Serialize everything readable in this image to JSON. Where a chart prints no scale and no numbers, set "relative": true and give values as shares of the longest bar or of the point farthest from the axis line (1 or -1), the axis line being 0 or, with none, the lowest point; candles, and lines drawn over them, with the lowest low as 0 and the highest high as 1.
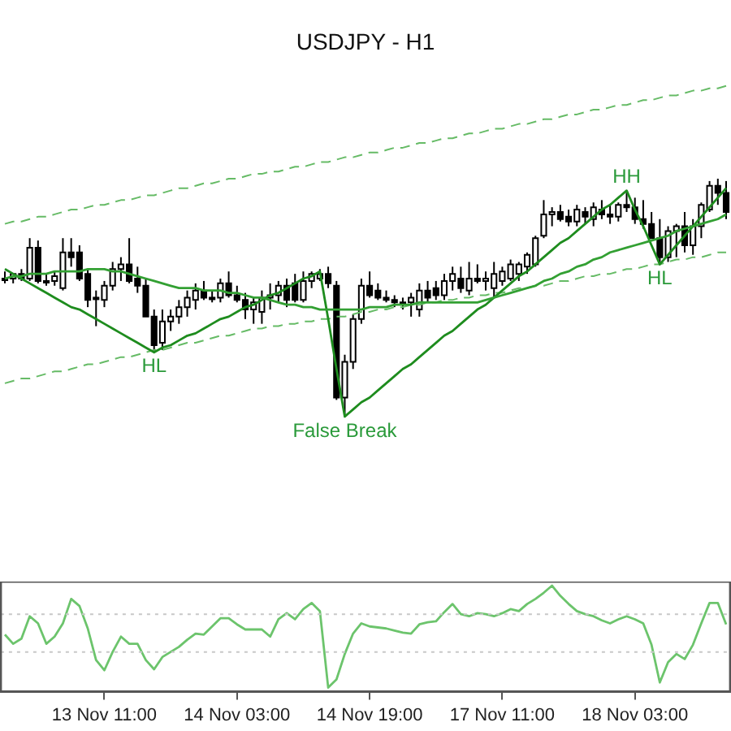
{
  "chart_data": [
    {
      "type": "candlestick",
      "title": "USDJPY - H1",
      "relative": true,
      "legend": false,
      "grid": false,
      "categories": [
        null,
        null,
        null,
        null,
        null,
        null,
        null,
        null,
        null,
        null,
        null,
        null,
        null,
        null,
        null,
        null,
        null,
        null,
        null,
        null,
        null,
        null,
        null,
        null,
        null,
        null,
        null,
        null,
        null,
        null,
        null,
        null,
        null,
        null,
        null,
        null,
        null,
        null,
        null,
        null,
        null,
        null,
        null,
        null,
        null,
        null,
        null,
        null,
        null,
        null,
        null,
        null,
        null,
        null,
        null,
        null,
        null,
        null,
        null,
        null,
        null,
        null,
        null,
        null,
        null,
        null,
        null,
        null,
        null,
        null,
        null,
        null,
        null,
        null,
        null,
        null,
        null,
        null,
        null,
        null,
        null,
        null,
        null,
        null,
        null,
        null,
        null,
        null
      ],
      "ohlc": [
        [
          0.58,
          0.61,
          0.56,
          0.58
        ],
        [
          0.58,
          0.6,
          0.56,
          0.6
        ],
        [
          0.6,
          0.62,
          0.57,
          0.58
        ],
        [
          0.58,
          0.75,
          0.57,
          0.71
        ],
        [
          0.71,
          0.74,
          0.56,
          0.57
        ],
        [
          0.57,
          0.6,
          0.55,
          0.57
        ],
        [
          0.57,
          0.61,
          0.55,
          0.59
        ],
        [
          0.54,
          0.75,
          0.53,
          0.69
        ],
        [
          0.69,
          0.75,
          0.63,
          0.67
        ],
        [
          0.69,
          0.72,
          0.57,
          0.58
        ],
        [
          0.6,
          0.62,
          0.46,
          0.49
        ],
        [
          0.5,
          0.53,
          0.38,
          0.5
        ],
        [
          0.49,
          0.57,
          0.46,
          0.55
        ],
        [
          0.55,
          0.65,
          0.53,
          0.62
        ],
        [
          0.62,
          0.67,
          0.57,
          0.64
        ],
        [
          0.64,
          0.75,
          0.56,
          0.57
        ],
        [
          0.58,
          0.63,
          0.52,
          0.55
        ],
        [
          0.55,
          0.58,
          0.42,
          0.42
        ],
        [
          0.42,
          0.45,
          0.27,
          0.3
        ],
        [
          0.31,
          0.45,
          0.28,
          0.4
        ],
        [
          0.4,
          0.45,
          0.36,
          0.42
        ],
        [
          0.42,
          0.49,
          0.39,
          0.46
        ],
        [
          0.46,
          0.53,
          0.42,
          0.5
        ],
        [
          0.49,
          0.56,
          0.45,
          0.53
        ],
        [
          0.53,
          0.57,
          0.49,
          0.5
        ],
        [
          0.5,
          0.53,
          0.48,
          0.5
        ],
        [
          0.5,
          0.58,
          0.48,
          0.56
        ],
        [
          0.56,
          0.61,
          0.5,
          0.51
        ],
        [
          0.51,
          0.55,
          0.48,
          0.49
        ],
        [
          0.49,
          0.52,
          0.41,
          0.45
        ],
        [
          0.45,
          0.5,
          0.39,
          0.48
        ],
        [
          0.44,
          0.53,
          0.39,
          0.5
        ],
        [
          0.5,
          0.56,
          0.45,
          0.51
        ],
        [
          0.51,
          0.57,
          0.48,
          0.55
        ],
        [
          0.55,
          0.58,
          0.46,
          0.49
        ],
        [
          0.56,
          0.6,
          0.48,
          0.49
        ],
        [
          0.49,
          0.61,
          0.48,
          0.57
        ],
        [
          0.57,
          0.61,
          0.54,
          0.6
        ],
        [
          0.58,
          0.62,
          0.57,
          0.6
        ],
        [
          0.6,
          0.63,
          0.54,
          0.56
        ],
        [
          0.55,
          0.57,
          0.07,
          0.08
        ],
        [
          0.08,
          0.26,
          0,
          0.23
        ],
        [
          0.23,
          0.43,
          0.2,
          0.41
        ],
        [
          0.41,
          0.58,
          0.39,
          0.55
        ],
        [
          0.55,
          0.61,
          0.5,
          0.51
        ],
        [
          0.53,
          0.56,
          0.49,
          0.5
        ],
        [
          0.5,
          0.53,
          0.48,
          0.49
        ],
        [
          0.49,
          0.51,
          0.46,
          0.48
        ],
        [
          0.48,
          0.5,
          0.45,
          0.48
        ],
        [
          0.48,
          0.52,
          0.42,
          0.5
        ],
        [
          0.45,
          0.56,
          0.42,
          0.53
        ],
        [
          0.53,
          0.57,
          0.48,
          0.5
        ],
        [
          0.54,
          0.57,
          0.49,
          0.51
        ],
        [
          0.51,
          0.6,
          0.49,
          0.57
        ],
        [
          0.57,
          0.63,
          0.53,
          0.6
        ],
        [
          0.58,
          0.63,
          0.52,
          0.54
        ],
        [
          0.53,
          0.65,
          0.51,
          0.58
        ],
        [
          0.58,
          0.64,
          0.56,
          0.57
        ],
        [
          0.57,
          0.61,
          0.53,
          0.58
        ],
        [
          0.54,
          0.65,
          0.5,
          0.6
        ],
        [
          0.57,
          0.63,
          0.55,
          0.61
        ],
        [
          0.58,
          0.66,
          0.57,
          0.64
        ],
        [
          0.6,
          0.65,
          0.57,
          0.64
        ],
        [
          0.63,
          0.69,
          0.6,
          0.68
        ],
        [
          0.64,
          0.76,
          0.63,
          0.75
        ],
        [
          0.76,
          0.91,
          0.75,
          0.85
        ],
        [
          0.85,
          0.88,
          0.8,
          0.86
        ],
        [
          0.86,
          0.89,
          0.82,
          0.83
        ],
        [
          0.84,
          0.87,
          0.8,
          0.82
        ],
        [
          0.82,
          0.89,
          0.8,
          0.87
        ],
        [
          0.86,
          0.88,
          0.81,
          0.84
        ],
        [
          0.83,
          0.9,
          0.8,
          0.88
        ],
        [
          0.87,
          0.91,
          0.83,
          0.85
        ],
        [
          0.85,
          0.89,
          0.81,
          0.84
        ],
        [
          0.84,
          0.9,
          0.82,
          0.89
        ],
        [
          0.89,
          0.95,
          0.86,
          0.88
        ],
        [
          0.88,
          0.92,
          0.81,
          0.83
        ],
        [
          0.83,
          0.91,
          0.79,
          0.81
        ],
        [
          0.81,
          0.86,
          0.75,
          0.75
        ],
        [
          0.75,
          0.83,
          0.64,
          0.67
        ],
        [
          0.67,
          0.8,
          0.65,
          0.78
        ],
        [
          0.78,
          0.81,
          0.67,
          0.8
        ],
        [
          0.8,
          0.86,
          0.69,
          0.72
        ],
        [
          0.72,
          0.83,
          0.68,
          0.8
        ],
        [
          0.8,
          0.9,
          0.75,
          0.89
        ],
        [
          0.87,
          0.99,
          0.86,
          0.97
        ],
        [
          0.97,
          1.0,
          0.89,
          0.94
        ],
        [
          0.94,
          0.99,
          0.83,
          0.86
        ]
      ],
      "series": [
        {
          "type": "line",
          "color": "#33a033",
          "values": [
            0.58,
            0.59,
            0.59,
            0.6,
            0.6,
            0.6,
            0.61,
            0.61,
            0.61,
            0.61,
            0.62,
            0.62,
            0.62,
            0.61,
            0.61,
            0.6,
            0.59,
            0.58,
            0.57,
            0.56,
            0.55,
            0.54,
            0.54,
            0.54,
            0.53,
            0.53,
            0.53,
            0.52,
            0.52,
            0.51,
            0.5,
            0.5,
            0.49,
            0.48,
            0.47,
            0.47,
            0.46,
            0.46,
            0.45,
            0.45,
            0.45,
            0.45,
            0.45,
            0.45,
            0.46,
            0.46,
            0.46,
            0.47,
            0.47,
            0.47,
            0.48,
            0.48,
            0.48,
            0.48,
            0.48,
            0.48,
            0.48,
            0.48,
            0.49,
            0.5,
            0.51,
            0.52,
            0.53,
            0.54,
            0.55,
            0.57,
            0.58,
            0.6,
            0.61,
            0.63,
            0.64,
            0.66,
            0.67,
            0.69,
            0.7,
            0.71,
            0.72,
            0.73,
            0.74,
            0.75,
            0.76,
            0.78,
            0.79,
            0.8,
            0.81,
            0.82,
            0.83,
            0.85
          ]
        },
        {
          "type": "line",
          "color": "#1e8c1e",
          "values": [
            0.62,
            0.6,
            0.58,
            0.56,
            0.54,
            0.52,
            0.5,
            0.48,
            0.46,
            0.45,
            0.43,
            0.41,
            0.39,
            0.37,
            0.35,
            0.33,
            0.31,
            0.29,
            0.27,
            0.29,
            0.3,
            0.32,
            0.34,
            0.35,
            0.37,
            0.39,
            0.41,
            0.42,
            0.44,
            0.46,
            0.47,
            0.49,
            0.51,
            0.52,
            0.54,
            0.56,
            0.58,
            0.59,
            0.61,
            0.41,
            0.2,
            0,
            0.03,
            0.06,
            0.08,
            0.11,
            0.14,
            0.17,
            0.2,
            0.22,
            0.25,
            0.28,
            0.31,
            0.34,
            0.36,
            0.39,
            0.42,
            0.45,
            0.47,
            0.5,
            0.53,
            0.56,
            0.59,
            0.61,
            0.64,
            0.67,
            0.7,
            0.73,
            0.75,
            0.78,
            0.81,
            0.84,
            0.87,
            0.89,
            0.92,
            0.95,
            0.87,
            0.8,
            0.72,
            0.64,
            0.68,
            0.72,
            0.76,
            0.8,
            0.84,
            0.88,
            0.92,
            0.96
          ]
        },
        {
          "type": "line",
          "line_style": "dashed",
          "color": "#66bb66",
          "values": [
            0.14,
            0.15,
            0.16,
            0.16,
            0.17,
            0.18,
            0.19,
            0.19,
            0.2,
            0.21,
            0.22,
            0.22,
            0.23,
            0.24,
            0.25,
            0.25,
            0.26,
            0.27,
            0.28,
            0.28,
            0.29,
            0.3,
            0.31,
            0.31,
            0.32,
            0.33,
            0.34,
            0.34,
            0.35,
            0.36,
            0.37,
            0.37,
            0.38,
            0.38,
            0.39,
            0.39,
            0.4,
            0.4,
            0.41,
            0.41,
            0.42,
            0.42,
            0.43,
            0.44,
            0.44,
            0.45,
            0.45,
            0.46,
            0.46,
            0.47,
            0.47,
            0.48,
            0.48,
            0.49,
            0.49,
            0.5,
            0.5,
            0.51,
            0.51,
            0.52,
            0.52,
            0.53,
            0.54,
            0.54,
            0.55,
            0.55,
            0.56,
            0.57,
            0.57,
            0.58,
            0.59,
            0.59,
            0.6,
            0.6,
            0.61,
            0.62,
            0.62,
            0.63,
            0.64,
            0.64,
            0.65,
            0.66,
            0.66,
            0.67,
            0.67,
            0.68,
            0.69,
            0.69
          ]
        },
        {
          "type": "line",
          "line_style": "dashed",
          "color": "#66bb66",
          "values": [
            0.81,
            0.82,
            0.82,
            0.83,
            0.84,
            0.84,
            0.85,
            0.86,
            0.87,
            0.87,
            0.88,
            0.89,
            0.89,
            0.9,
            0.91,
            0.91,
            0.92,
            0.93,
            0.93,
            0.94,
            0.95,
            0.96,
            0.96,
            0.97,
            0.98,
            0.98,
            0.99,
            1.0,
            1.0,
            1.01,
            1.02,
            1.02,
            1.03,
            1.03,
            1.04,
            1.05,
            1.05,
            1.06,
            1.07,
            1.07,
            1.08,
            1.09,
            1.09,
            1.1,
            1.11,
            1.11,
            1.12,
            1.13,
            1.13,
            1.14,
            1.15,
            1.15,
            1.16,
            1.17,
            1.17,
            1.18,
            1.19,
            1.19,
            1.2,
            1.21,
            1.21,
            1.22,
            1.23,
            1.23,
            1.24,
            1.25,
            1.25,
            1.26,
            1.27,
            1.27,
            1.28,
            1.29,
            1.29,
            1.3,
            1.31,
            1.31,
            1.32,
            1.33,
            1.33,
            1.34,
            1.35,
            1.35,
            1.36,
            1.37,
            1.37,
            1.38,
            1.38,
            1.39
          ]
        }
      ],
      "annotations": [
        {
          "text": "HL",
          "y": 0.27
        },
        {
          "text": "False Break",
          "y": 0
        },
        {
          "text": "HH",
          "y": 0.95
        },
        {
          "text": "HL",
          "y": 0.64
        }
      ]
    },
    {
      "type": "line",
      "relative": true,
      "tick_labels": "x",
      "legend": false,
      "grid": false,
      "color": "#6cc46c",
      "categories": [
        null,
        null,
        null,
        null,
        null,
        null,
        null,
        null,
        null,
        null,
        null,
        null,
        "13 Nov 11:00",
        null,
        null,
        null,
        null,
        null,
        null,
        null,
        null,
        null,
        null,
        null,
        null,
        null,
        null,
        null,
        "14 Nov 03:00",
        null,
        null,
        null,
        null,
        null,
        null,
        null,
        null,
        null,
        null,
        null,
        null,
        null,
        null,
        null,
        "14 Nov 19:00",
        null,
        null,
        null,
        null,
        null,
        null,
        null,
        null,
        null,
        null,
        null,
        null,
        null,
        null,
        null,
        "17 Nov 11:00",
        null,
        null,
        null,
        null,
        null,
        null,
        null,
        null,
        null,
        null,
        null,
        null,
        null,
        null,
        null,
        "18 Nov 03:00",
        null,
        null,
        null,
        null,
        null,
        null,
        null,
        null,
        null,
        null,
        null
      ],
      "values": [
        0.52,
        0.43,
        0.48,
        0.7,
        0.63,
        0.43,
        0.5,
        0.63,
        0.87,
        0.8,
        0.58,
        0.27,
        0.17,
        0.35,
        0.5,
        0.43,
        0.43,
        0.27,
        0.18,
        0.3,
        0.35,
        0.4,
        0.47,
        0.53,
        0.52,
        0.6,
        0.68,
        0.68,
        0.62,
        0.57,
        0.57,
        0.57,
        0.5,
        0.67,
        0.73,
        0.67,
        0.77,
        0.83,
        0.75,
        0,
        0.08,
        0.33,
        0.53,
        0.63,
        0.6,
        0.59,
        0.58,
        0.56,
        0.54,
        0.53,
        0.62,
        0.64,
        0.65,
        0.74,
        0.82,
        0.72,
        0.7,
        0.73,
        0.72,
        0.7,
        0.73,
        0.77,
        0.75,
        0.82,
        0.87,
        0.93,
        1,
        0.9,
        0.82,
        0.75,
        0.72,
        0.7,
        0.66,
        0.63,
        0.67,
        0.7,
        0.67,
        0.63,
        0.42,
        0.05,
        0.25,
        0.33,
        0.28,
        0.42,
        0.63,
        0.83,
        0.83,
        0.62
      ],
      "ref_lines": [
        {
          "axis": "y",
          "value": 0.72,
          "color": "#c8c8c8",
          "line_style": "dotted"
        },
        {
          "axis": "y",
          "value": 0.35,
          "color": "#c8c8c8",
          "line_style": "dotted"
        }
      ]
    }
  ]
}
